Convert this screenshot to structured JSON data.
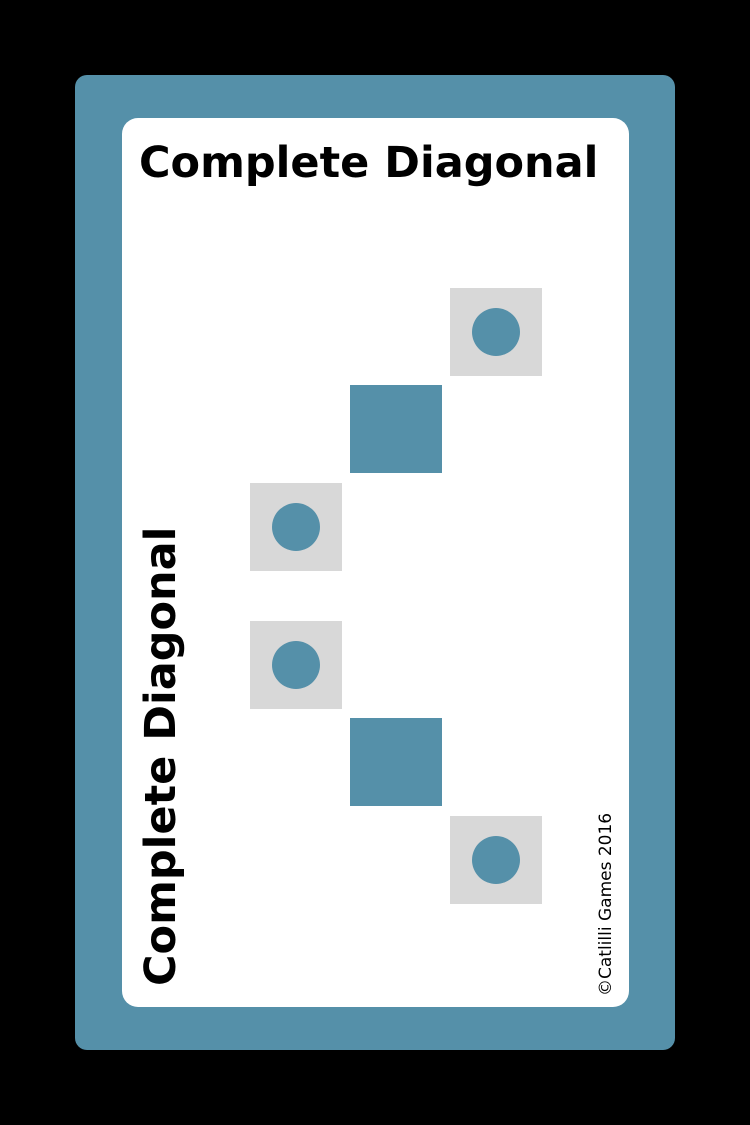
{
  "card": {
    "title": "Complete Diagonal",
    "side_title": "Complete Diagonal",
    "copyright": "©Catlilli Games 2016"
  },
  "colors": {
    "background": "#000000",
    "card_border": "#5590a9",
    "card_face": "#ffffff",
    "cell_empty": "#d8d8d8",
    "token": "#5590a9"
  },
  "pattern": {
    "cells": [
      {
        "row": 1,
        "col": 3,
        "state": "empty-with-token"
      },
      {
        "row": 2,
        "col": 2,
        "state": "filled"
      },
      {
        "row": 3,
        "col": 1,
        "state": "empty-with-token"
      },
      {
        "row": 4,
        "col": 1,
        "state": "empty-with-token"
      },
      {
        "row": 5,
        "col": 2,
        "state": "filled"
      },
      {
        "row": 6,
        "col": 3,
        "state": "empty-with-token"
      }
    ]
  }
}
